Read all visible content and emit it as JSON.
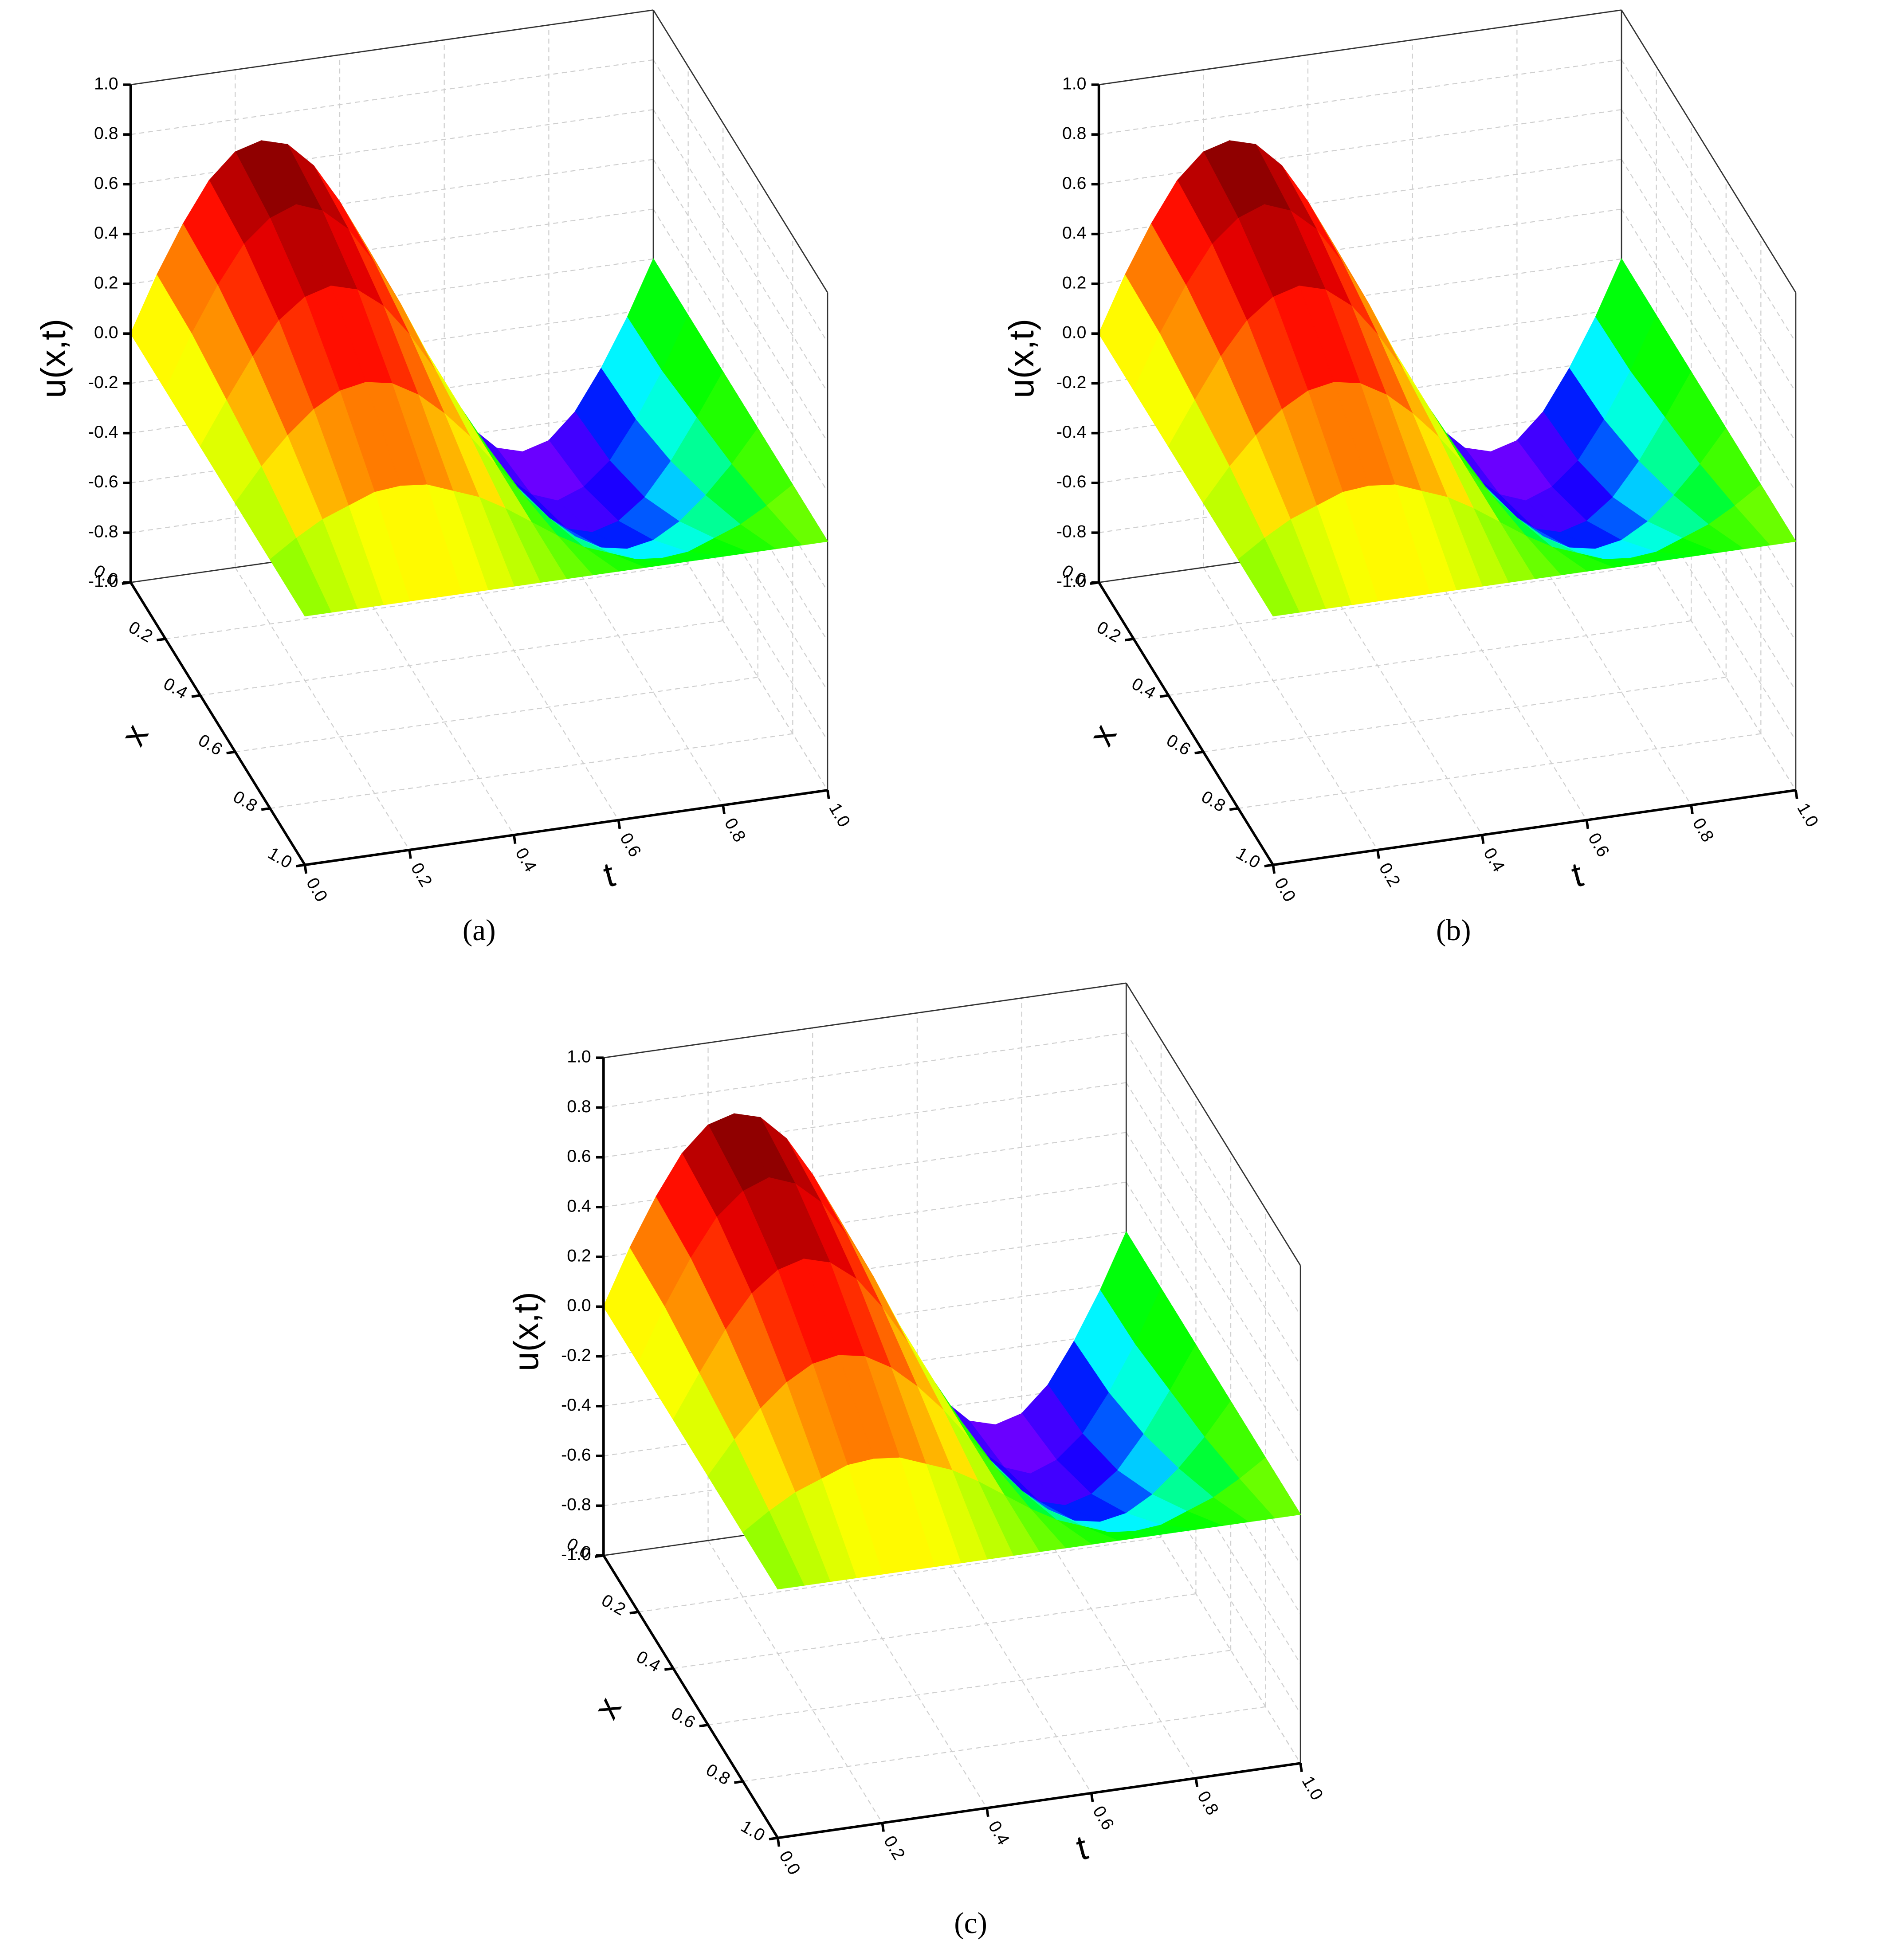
{
  "chart_data": [
    {
      "type": "surface3d",
      "caption": "(a)",
      "xlabel": "x",
      "tlabel": "t",
      "zlabel": "u(x,t)",
      "colormap": [
        "#7f00ff",
        "#0000ff",
        "#00ffff",
        "#00ff00",
        "#ffff00",
        "#ff8000",
        "#ff0000",
        "#7a0000"
      ],
      "x": [
        0,
        0.2,
        0.4,
        0.6,
        0.8,
        1
      ],
      "t": [
        0,
        0.05,
        0.1,
        0.15,
        0.2,
        0.25,
        0.3,
        0.35,
        0.4,
        0.45,
        0.5,
        0.55,
        0.6,
        0.65,
        0.7,
        0.75,
        0.8,
        0.85,
        0.9,
        0.95,
        1
      ],
      "z": [
        [
          0,
          0.22,
          0.41,
          0.57,
          0.67,
          0.7,
          0.67,
          0.57,
          0.41,
          0.22,
          0,
          -0.22,
          -0.41,
          -0.57,
          -0.67,
          -0.7,
          -0.67,
          -0.57,
          -0.41,
          -0.22,
          0
        ],
        [
          0,
          0.21,
          0.39,
          0.54,
          0.63,
          0.67,
          0.63,
          0.54,
          0.39,
          0.21,
          0,
          -0.21,
          -0.39,
          -0.54,
          -0.63,
          -0.67,
          -0.63,
          -0.54,
          -0.39,
          -0.21,
          0
        ],
        [
          0,
          0.17,
          0.33,
          0.46,
          0.54,
          0.57,
          0.54,
          0.46,
          0.33,
          0.17,
          0,
          -0.17,
          -0.33,
          -0.46,
          -0.54,
          -0.57,
          -0.54,
          -0.46,
          -0.33,
          -0.17,
          0
        ],
        [
          0,
          0.13,
          0.24,
          0.33,
          0.39,
          0.41,
          0.39,
          0.33,
          0.24,
          0.13,
          0,
          -0.13,
          -0.24,
          -0.33,
          -0.39,
          -0.41,
          -0.39,
          -0.33,
          -0.24,
          -0.13,
          0
        ],
        [
          0,
          0.07,
          0.13,
          0.17,
          0.21,
          0.22,
          0.21,
          0.17,
          0.13,
          0.07,
          0,
          -0.07,
          -0.13,
          -0.17,
          -0.21,
          -0.22,
          -0.21,
          -0.17,
          -0.13,
          -0.07,
          0
        ],
        [
          0,
          0,
          0,
          0,
          0,
          0,
          0,
          0,
          0,
          0,
          0,
          0,
          0,
          0,
          0,
          0,
          0,
          0,
          0,
          0,
          0
        ]
      ],
      "xlim": [
        0,
        1
      ],
      "tlim": [
        0,
        1
      ],
      "zlim": [
        -1,
        1
      ],
      "xticks": [
        {
          "value": 0,
          "label": "0.0"
        },
        0.2,
        0.4,
        0.6,
        0.8,
        {
          "value": 1,
          "label": "1.0"
        }
      ],
      "tticks": [
        {
          "value": 0,
          "label": "0.0"
        },
        0.2,
        0.4,
        0.6,
        0.8,
        {
          "value": 1,
          "label": "1.0"
        }
      ],
      "zticks": [
        {
          "value": -1,
          "label": "-1.0"
        },
        -0.8,
        -0.6,
        -0.4,
        -0.2,
        {
          "value": 0,
          "label": "0.0"
        },
        0.2,
        0.4,
        0.6,
        0.8,
        {
          "value": 1,
          "label": "1.0"
        }
      ],
      "grid": true
    },
    {
      "type": "surface3d",
      "caption": "(b)",
      "xlabel": "x",
      "tlabel": "t",
      "zlabel": "u(x,t)",
      "colormap": [
        "#7f00ff",
        "#0000ff",
        "#00ffff",
        "#00ff00",
        "#ffff00",
        "#ff8000",
        "#ff0000",
        "#7a0000"
      ],
      "x": [
        0,
        0.2,
        0.4,
        0.6,
        0.8,
        1
      ],
      "t": [
        0,
        0.05,
        0.1,
        0.15,
        0.2,
        0.25,
        0.3,
        0.35,
        0.4,
        0.45,
        0.5,
        0.55,
        0.6,
        0.65,
        0.7,
        0.75,
        0.8,
        0.85,
        0.9,
        0.95,
        1
      ],
      "z": [
        [
          0,
          0.22,
          0.41,
          0.57,
          0.67,
          0.7,
          0.67,
          0.57,
          0.41,
          0.22,
          0,
          -0.22,
          -0.41,
          -0.57,
          -0.67,
          -0.7,
          -0.67,
          -0.57,
          -0.41,
          -0.22,
          0
        ],
        [
          0,
          0.21,
          0.39,
          0.54,
          0.63,
          0.67,
          0.63,
          0.54,
          0.39,
          0.21,
          0,
          -0.21,
          -0.39,
          -0.54,
          -0.63,
          -0.67,
          -0.63,
          -0.54,
          -0.39,
          -0.21,
          0
        ],
        [
          0,
          0.17,
          0.33,
          0.46,
          0.54,
          0.57,
          0.54,
          0.46,
          0.33,
          0.17,
          0,
          -0.17,
          -0.33,
          -0.46,
          -0.54,
          -0.57,
          -0.54,
          -0.46,
          -0.33,
          -0.17,
          0
        ],
        [
          0,
          0.13,
          0.24,
          0.33,
          0.39,
          0.41,
          0.39,
          0.33,
          0.24,
          0.13,
          0,
          -0.13,
          -0.24,
          -0.33,
          -0.39,
          -0.41,
          -0.39,
          -0.33,
          -0.24,
          -0.13,
          0
        ],
        [
          0,
          0.07,
          0.13,
          0.17,
          0.21,
          0.22,
          0.21,
          0.17,
          0.13,
          0.07,
          0,
          -0.07,
          -0.13,
          -0.17,
          -0.21,
          -0.22,
          -0.21,
          -0.17,
          -0.13,
          -0.07,
          0
        ],
        [
          0,
          0,
          0,
          0,
          0,
          0,
          0,
          0,
          0,
          0,
          0,
          0,
          0,
          0,
          0,
          0,
          0,
          0,
          0,
          0,
          0
        ]
      ],
      "xlim": [
        0,
        1
      ],
      "tlim": [
        0,
        1
      ],
      "zlim": [
        -1,
        1
      ],
      "xticks": [
        {
          "value": 0,
          "label": "0.0"
        },
        0.2,
        0.4,
        0.6,
        0.8,
        {
          "value": 1,
          "label": "1.0"
        }
      ],
      "tticks": [
        {
          "value": 0,
          "label": "0.0"
        },
        0.2,
        0.4,
        0.6,
        0.8,
        {
          "value": 1,
          "label": "1.0"
        }
      ],
      "zticks": [
        {
          "value": -1,
          "label": "-1.0"
        },
        -0.8,
        -0.6,
        -0.4,
        -0.2,
        {
          "value": 0,
          "label": "0.0"
        },
        0.2,
        0.4,
        0.6,
        0.8,
        {
          "value": 1,
          "label": "1.0"
        }
      ],
      "grid": true
    },
    {
      "type": "surface3d",
      "caption": "(c)",
      "xlabel": "x",
      "tlabel": "t",
      "zlabel": "u(x,t)",
      "colormap": [
        "#7f00ff",
        "#0000ff",
        "#00ffff",
        "#00ff00",
        "#ffff00",
        "#ff8000",
        "#ff0000",
        "#7a0000"
      ],
      "x": [
        0,
        0.2,
        0.4,
        0.6,
        0.8,
        1
      ],
      "t": [
        0,
        0.05,
        0.1,
        0.15,
        0.2,
        0.25,
        0.3,
        0.35,
        0.4,
        0.45,
        0.5,
        0.55,
        0.6,
        0.65,
        0.7,
        0.75,
        0.8,
        0.85,
        0.9,
        0.95,
        1
      ],
      "z": [
        [
          0,
          0.22,
          0.41,
          0.57,
          0.67,
          0.7,
          0.67,
          0.57,
          0.41,
          0.22,
          0,
          -0.22,
          -0.41,
          -0.57,
          -0.67,
          -0.7,
          -0.67,
          -0.57,
          -0.41,
          -0.22,
          0
        ],
        [
          0,
          0.21,
          0.39,
          0.54,
          0.63,
          0.67,
          0.63,
          0.54,
          0.39,
          0.21,
          0,
          -0.21,
          -0.39,
          -0.54,
          -0.63,
          -0.67,
          -0.63,
          -0.54,
          -0.39,
          -0.21,
          0
        ],
        [
          0,
          0.17,
          0.33,
          0.46,
          0.54,
          0.57,
          0.54,
          0.46,
          0.33,
          0.17,
          0,
          -0.17,
          -0.33,
          -0.46,
          -0.54,
          -0.57,
          -0.54,
          -0.46,
          -0.33,
          -0.17,
          0
        ],
        [
          0,
          0.13,
          0.24,
          0.33,
          0.39,
          0.41,
          0.39,
          0.33,
          0.24,
          0.13,
          0,
          -0.13,
          -0.24,
          -0.33,
          -0.39,
          -0.41,
          -0.39,
          -0.33,
          -0.24,
          -0.13,
          0
        ],
        [
          0,
          0.07,
          0.13,
          0.17,
          0.21,
          0.22,
          0.21,
          0.17,
          0.13,
          0.07,
          0,
          -0.07,
          -0.13,
          -0.17,
          -0.21,
          -0.22,
          -0.21,
          -0.17,
          -0.13,
          -0.07,
          0
        ],
        [
          0,
          0,
          0,
          0,
          0,
          0,
          0,
          0,
          0,
          0,
          0,
          0,
          0,
          0,
          0,
          0,
          0,
          0,
          0,
          0,
          0
        ]
      ],
      "xlim": [
        0,
        1
      ],
      "tlim": [
        0,
        1
      ],
      "zlim": [
        -1,
        1
      ],
      "xticks": [
        {
          "value": 0,
          "label": "0.0"
        },
        0.2,
        0.4,
        0.6,
        0.8,
        {
          "value": 1,
          "label": "1.0"
        }
      ],
      "tticks": [
        {
          "value": 0,
          "label": "0.0"
        },
        0.2,
        0.4,
        0.6,
        0.8,
        {
          "value": 1,
          "label": "1.0"
        }
      ],
      "zticks": [
        {
          "value": -1,
          "label": "-1.0"
        },
        -0.8,
        -0.6,
        -0.4,
        -0.2,
        {
          "value": 0,
          "label": "0.0"
        },
        0.2,
        0.4,
        0.6,
        0.8,
        {
          "value": 1,
          "label": "1.0"
        }
      ],
      "grid": true
    }
  ]
}
